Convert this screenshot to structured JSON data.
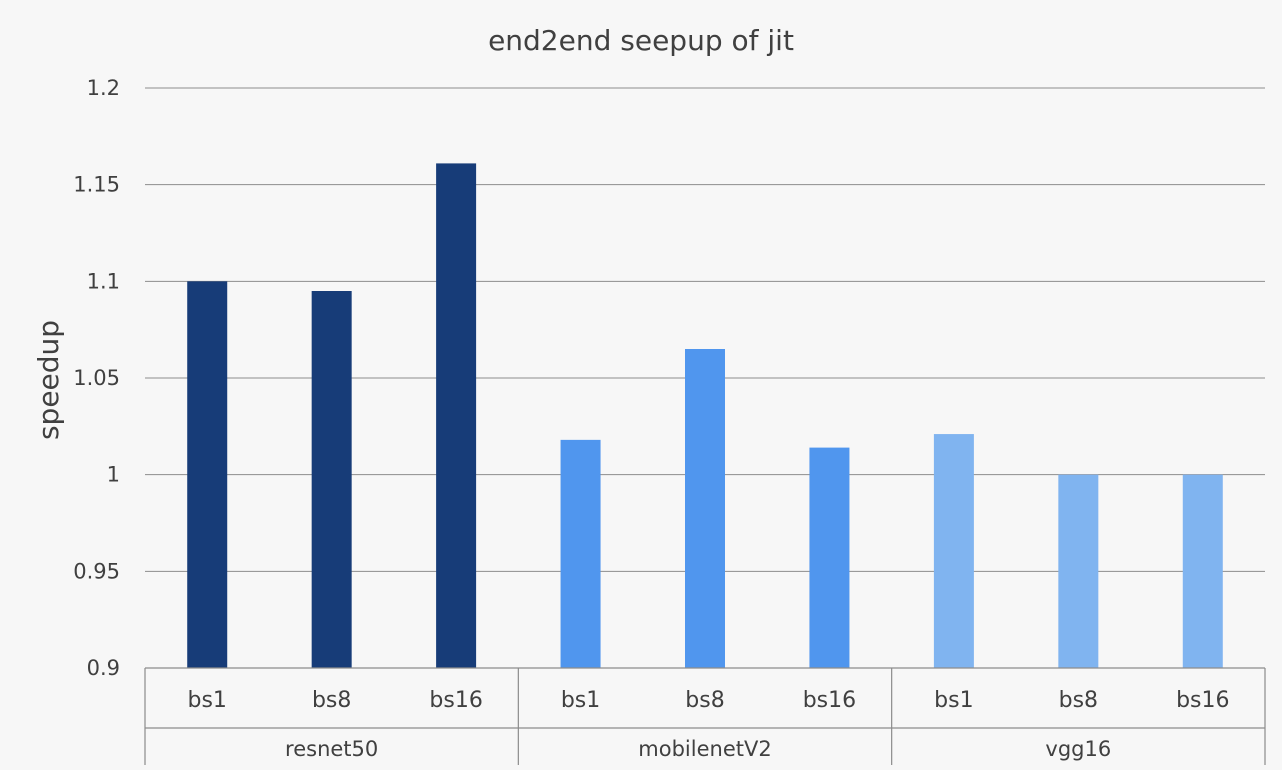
{
  "chart_data": {
    "type": "bar",
    "title": "end2end seepup of jit",
    "xlabel": "",
    "ylabel": "speedup",
    "ylim": [
      0.9,
      1.2
    ],
    "yticks": [
      "0.9",
      "0.95",
      "1",
      "1.05",
      "1.1",
      "1.15",
      "1.2"
    ],
    "grid": true,
    "legend": "none",
    "groups": [
      {
        "name": "resnet50",
        "color": "#173c78",
        "categories": [
          "bs1",
          "bs8",
          "bs16"
        ],
        "values": [
          1.1,
          1.095,
          1.161
        ]
      },
      {
        "name": "mobilenetV2",
        "color": "#5096ee",
        "categories": [
          "bs1",
          "bs8",
          "bs16"
        ],
        "values": [
          1.018,
          1.065,
          1.014
        ]
      },
      {
        "name": "vgg16",
        "color": "#80b4f0",
        "categories": [
          "bs1",
          "bs8",
          "bs16"
        ],
        "values": [
          1.021,
          1.0,
          1.0
        ]
      }
    ]
  }
}
